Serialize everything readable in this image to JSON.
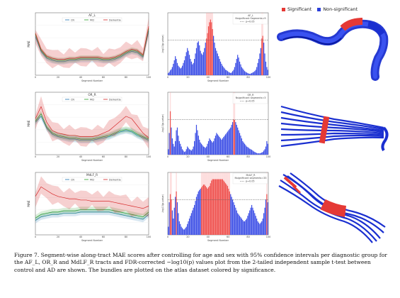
{
  "figure": {
    "caption": "Figure 7. Segment-wise along-tract MAE scores after controlling for age and sex with 95% confidence intervals per diagnostic group for the AF_L, OR_R and MdLF_R tracts and FDR-corrected −log10(p) values plot from the 2-tailed independent sample t-test between control and AD are shown. The bundles are plotted on the atlas dataset colored by significance."
  },
  "bundle_legend": {
    "significant": "Significant",
    "non_significant": "Non-significant"
  },
  "colors": {
    "cn": "#1f77b4",
    "mci": "#2ca02c",
    "dementia": "#d62728",
    "sig_bar": "#ef5350",
    "nonsig_bar": "#3f51e6",
    "sig_fill": "#f8a0a0"
  },
  "rows": [
    {
      "tract": "AF_L",
      "line_plot": {
        "title": "AF_L",
        "ylabel": "MAE",
        "xlabel": "Segment Number",
        "legend": [
          "CN",
          "MCI",
          "Dementia"
        ]
      },
      "pval_plot": {
        "title": "AF_L",
        "legend_line1": "Nsignificant Segments=9",
        "legend_line2": "p=0.05",
        "ylabel": "-log10(p-value)",
        "xlabel": "Segment Number"
      }
    },
    {
      "tract": "OR_R",
      "line_plot": {
        "title": "OR_R",
        "ylabel": "MAE",
        "xlabel": "Segment Number",
        "legend": [
          "CN",
          "MCI",
          "Dementia"
        ]
      },
      "pval_plot": {
        "title": "OR_R",
        "legend_line1": "Nsignificant segments=3",
        "legend_line2": "p=0.05",
        "ylabel": "-log10(p-value)",
        "xlabel": "Segment Number"
      }
    },
    {
      "tract": "MdLF_R",
      "line_plot": {
        "title": "MdLF_R",
        "ylabel": "MAE",
        "xlabel": "Segment Number",
        "legend": [
          "CN",
          "MCI",
          "Dementia"
        ]
      },
      "pval_plot": {
        "title": "MdLF_R",
        "legend_line1": "Nsignificant segments=33",
        "legend_line2": "p=0.05",
        "ylabel": "-log10(p-value)",
        "xlabel": "Segment Number"
      }
    }
  ],
  "chart_data": [
    {
      "type": "line",
      "title": "AF_L",
      "xlabel": "Segment Number",
      "ylabel": "MAE",
      "xlim": [
        0,
        100
      ],
      "series": [
        {
          "name": "CN",
          "values": [
            0.55,
            0.42,
            0.36,
            0.34,
            0.33,
            0.33,
            0.34,
            0.34,
            0.35,
            0.35,
            0.35,
            0.35,
            0.34,
            0.34,
            0.35,
            0.37,
            0.4,
            0.42,
            0.41,
            0.37,
            0.6
          ]
        },
        {
          "name": "MCI",
          "values": [
            0.57,
            0.43,
            0.37,
            0.35,
            0.34,
            0.34,
            0.35,
            0.35,
            0.36,
            0.36,
            0.36,
            0.36,
            0.35,
            0.35,
            0.36,
            0.38,
            0.41,
            0.43,
            0.42,
            0.38,
            0.62
          ]
        },
        {
          "name": "Dementia",
          "values": [
            0.58,
            0.44,
            0.38,
            0.36,
            0.35,
            0.35,
            0.36,
            0.36,
            0.37,
            0.37,
            0.37,
            0.37,
            0.36,
            0.36,
            0.37,
            0.39,
            0.42,
            0.44,
            0.43,
            0.39,
            0.64
          ]
        }
      ]
    },
    {
      "type": "bar",
      "title": "AF_L",
      "xlabel": "Segment Number",
      "ylabel": "-log10(p-value)",
      "threshold": 1.3,
      "values": [
        0.08,
        0.12,
        0.18,
        0.22,
        0.3,
        0.42,
        0.55,
        0.7,
        0.6,
        0.45,
        0.35,
        0.3,
        0.25,
        0.28,
        0.35,
        0.45,
        0.55,
        0.7,
        0.85,
        1.0,
        0.9,
        0.75,
        0.6,
        0.5,
        0.4,
        0.45,
        0.6,
        0.8,
        1.0,
        1.2,
        1.25,
        1.1,
        0.9,
        0.8,
        0.75,
        0.85,
        1.0,
        1.2,
        1.35,
        1.55,
        1.8,
        1.95,
        2.05,
        1.95,
        1.7,
        1.45,
        1.2,
        1.0,
        0.9,
        0.8,
        0.7,
        0.6,
        0.5,
        0.42,
        0.35,
        0.3,
        0.25,
        0.2,
        0.18,
        0.15,
        0.12,
        0.1,
        0.08,
        0.1,
        0.15,
        0.2,
        0.3,
        0.45,
        0.6,
        0.75,
        0.65,
        0.5,
        0.4,
        0.3,
        0.25,
        0.2,
        0.15,
        0.12,
        0.1,
        0.08,
        0.06,
        0.05,
        0.06,
        0.08,
        0.1,
        0.12,
        0.15,
        0.2,
        0.3,
        0.45,
        0.6,
        0.8,
        1.0,
        1.35,
        1.45,
        1.2,
        0.8,
        0.5,
        0.3,
        0.2
      ],
      "significant": [
        38,
        39,
        40,
        41,
        42,
        43,
        44,
        93,
        94
      ]
    },
    {
      "type": "line",
      "title": "OR_R",
      "xlabel": "Segment Number",
      "ylabel": "MAE",
      "xlim": [
        0,
        100
      ],
      "series": [
        {
          "name": "CN",
          "values": [
            0.55,
            0.6,
            0.5,
            0.45,
            0.43,
            0.42,
            0.41,
            0.41,
            0.4,
            0.4,
            0.4,
            0.41,
            0.42,
            0.43,
            0.45,
            0.47,
            0.48,
            0.47,
            0.44,
            0.42,
            0.4
          ]
        },
        {
          "name": "MCI",
          "values": [
            0.56,
            0.62,
            0.51,
            0.46,
            0.44,
            0.43,
            0.42,
            0.42,
            0.41,
            0.41,
            0.41,
            0.42,
            0.43,
            0.44,
            0.46,
            0.48,
            0.49,
            0.48,
            0.45,
            0.43,
            0.41
          ]
        },
        {
          "name": "Dementia",
          "values": [
            0.58,
            0.68,
            0.55,
            0.48,
            0.46,
            0.45,
            0.44,
            0.44,
            0.43,
            0.43,
            0.43,
            0.44,
            0.46,
            0.48,
            0.52,
            0.56,
            0.6,
            0.58,
            0.52,
            0.46,
            0.42
          ]
        }
      ]
    },
    {
      "type": "bar",
      "title": "OR_R",
      "xlabel": "Segment Number",
      "ylabel": "-log10(p-value)",
      "threshold": 1.3,
      "values": [
        0.2,
        0.8,
        1.6,
        1.0,
        0.6,
        0.4,
        0.3,
        0.5,
        0.9,
        1.0,
        0.7,
        0.5,
        0.4,
        0.3,
        0.2,
        0.15,
        0.1,
        0.12,
        0.2,
        0.3,
        0.25,
        0.2,
        0.18,
        0.15,
        0.2,
        0.3,
        0.5,
        0.8,
        1.1,
        0.9,
        0.7,
        0.55,
        0.45,
        0.4,
        0.35,
        0.3,
        0.28,
        0.25,
        0.3,
        0.4,
        0.5,
        0.6,
        0.55,
        0.5,
        0.45,
        0.5,
        0.6,
        0.7,
        0.8,
        0.75,
        0.7,
        0.65,
        0.6,
        0.55,
        0.6,
        0.65,
        0.7,
        0.75,
        0.8,
        0.85,
        0.9,
        0.95,
        1.0,
        1.1,
        1.2,
        1.3,
        1.28,
        1.2,
        1.1,
        1.0,
        0.9,
        0.8,
        0.7,
        0.6,
        0.5,
        0.45,
        0.4,
        0.35,
        0.3,
        0.28,
        0.25,
        0.22,
        0.2,
        0.18,
        0.15,
        0.12,
        0.1,
        0.08,
        0.06,
        0.05,
        0.05,
        0.05,
        0.06,
        0.08,
        0.1,
        0.15,
        0.2,
        0.3,
        0.5,
        0.4
      ],
      "significant": [
        2,
        65,
        66
      ]
    },
    {
      "type": "line",
      "title": "MdLF_R",
      "xlabel": "Segment Number",
      "ylabel": "MAE",
      "xlim": [
        0,
        100
      ],
      "series": [
        {
          "name": "CN",
          "values": [
            0.3,
            0.33,
            0.34,
            0.35,
            0.35,
            0.36,
            0.36,
            0.36,
            0.37,
            0.37,
            0.37,
            0.37,
            0.37,
            0.37,
            0.36,
            0.35,
            0.34,
            0.33,
            0.32,
            0.31,
            0.35
          ]
        },
        {
          "name": "MCI",
          "values": [
            0.32,
            0.35,
            0.36,
            0.37,
            0.37,
            0.38,
            0.38,
            0.38,
            0.39,
            0.39,
            0.39,
            0.39,
            0.39,
            0.39,
            0.38,
            0.37,
            0.36,
            0.35,
            0.34,
            0.33,
            0.37
          ]
        },
        {
          "name": "Dementia",
          "values": [
            0.5,
            0.58,
            0.55,
            0.52,
            0.5,
            0.49,
            0.48,
            0.48,
            0.47,
            0.47,
            0.46,
            0.46,
            0.46,
            0.46,
            0.45,
            0.44,
            0.43,
            0.42,
            0.41,
            0.4,
            0.42
          ]
        }
      ]
    },
    {
      "type": "bar",
      "title": "MdLF_R",
      "xlabel": "Segment Number",
      "ylabel": "-log10(p-value)",
      "threshold": 1.3,
      "values": [
        0.3,
        1.2,
        1.5,
        1.3,
        0.9,
        0.6,
        1.0,
        1.4,
        1.6,
        1.2,
        0.8,
        0.5,
        0.4,
        0.3,
        0.25,
        0.2,
        0.2,
        0.25,
        0.3,
        0.4,
        0.5,
        0.6,
        0.7,
        0.8,
        0.9,
        1.0,
        1.1,
        1.25,
        1.4,
        1.5,
        1.6,
        1.65,
        1.7,
        1.75,
        1.8,
        1.85,
        1.85,
        1.8,
        1.75,
        1.7,
        1.75,
        1.8,
        1.9,
        2.0,
        2.05,
        2.05,
        2.05,
        2.05,
        2.05,
        2.05,
        2.05,
        2.05,
        2.05,
        2.05,
        2.05,
        2.0,
        1.95,
        1.9,
        1.85,
        1.8,
        1.7,
        1.6,
        1.5,
        1.4,
        1.3,
        1.2,
        1.1,
        1.0,
        0.9,
        0.8,
        0.75,
        0.7,
        0.65,
        0.6,
        0.55,
        0.5,
        0.5,
        0.55,
        0.6,
        0.7,
        0.8,
        0.9,
        1.0,
        1.1,
        1.0,
        0.9,
        0.8,
        0.7,
        0.6,
        0.5,
        0.45,
        0.4,
        0.45,
        0.5,
        0.6,
        0.8,
        1.0,
        1.3,
        1.5,
        1.2
      ],
      "significant": [
        2,
        3,
        8,
        33,
        34,
        35,
        36,
        37,
        38,
        39,
        40,
        41,
        42,
        43,
        44,
        45,
        46,
        47,
        48,
        49,
        50,
        51,
        52,
        53,
        54,
        55,
        56,
        57,
        58,
        59,
        60,
        61,
        98
      ]
    }
  ]
}
